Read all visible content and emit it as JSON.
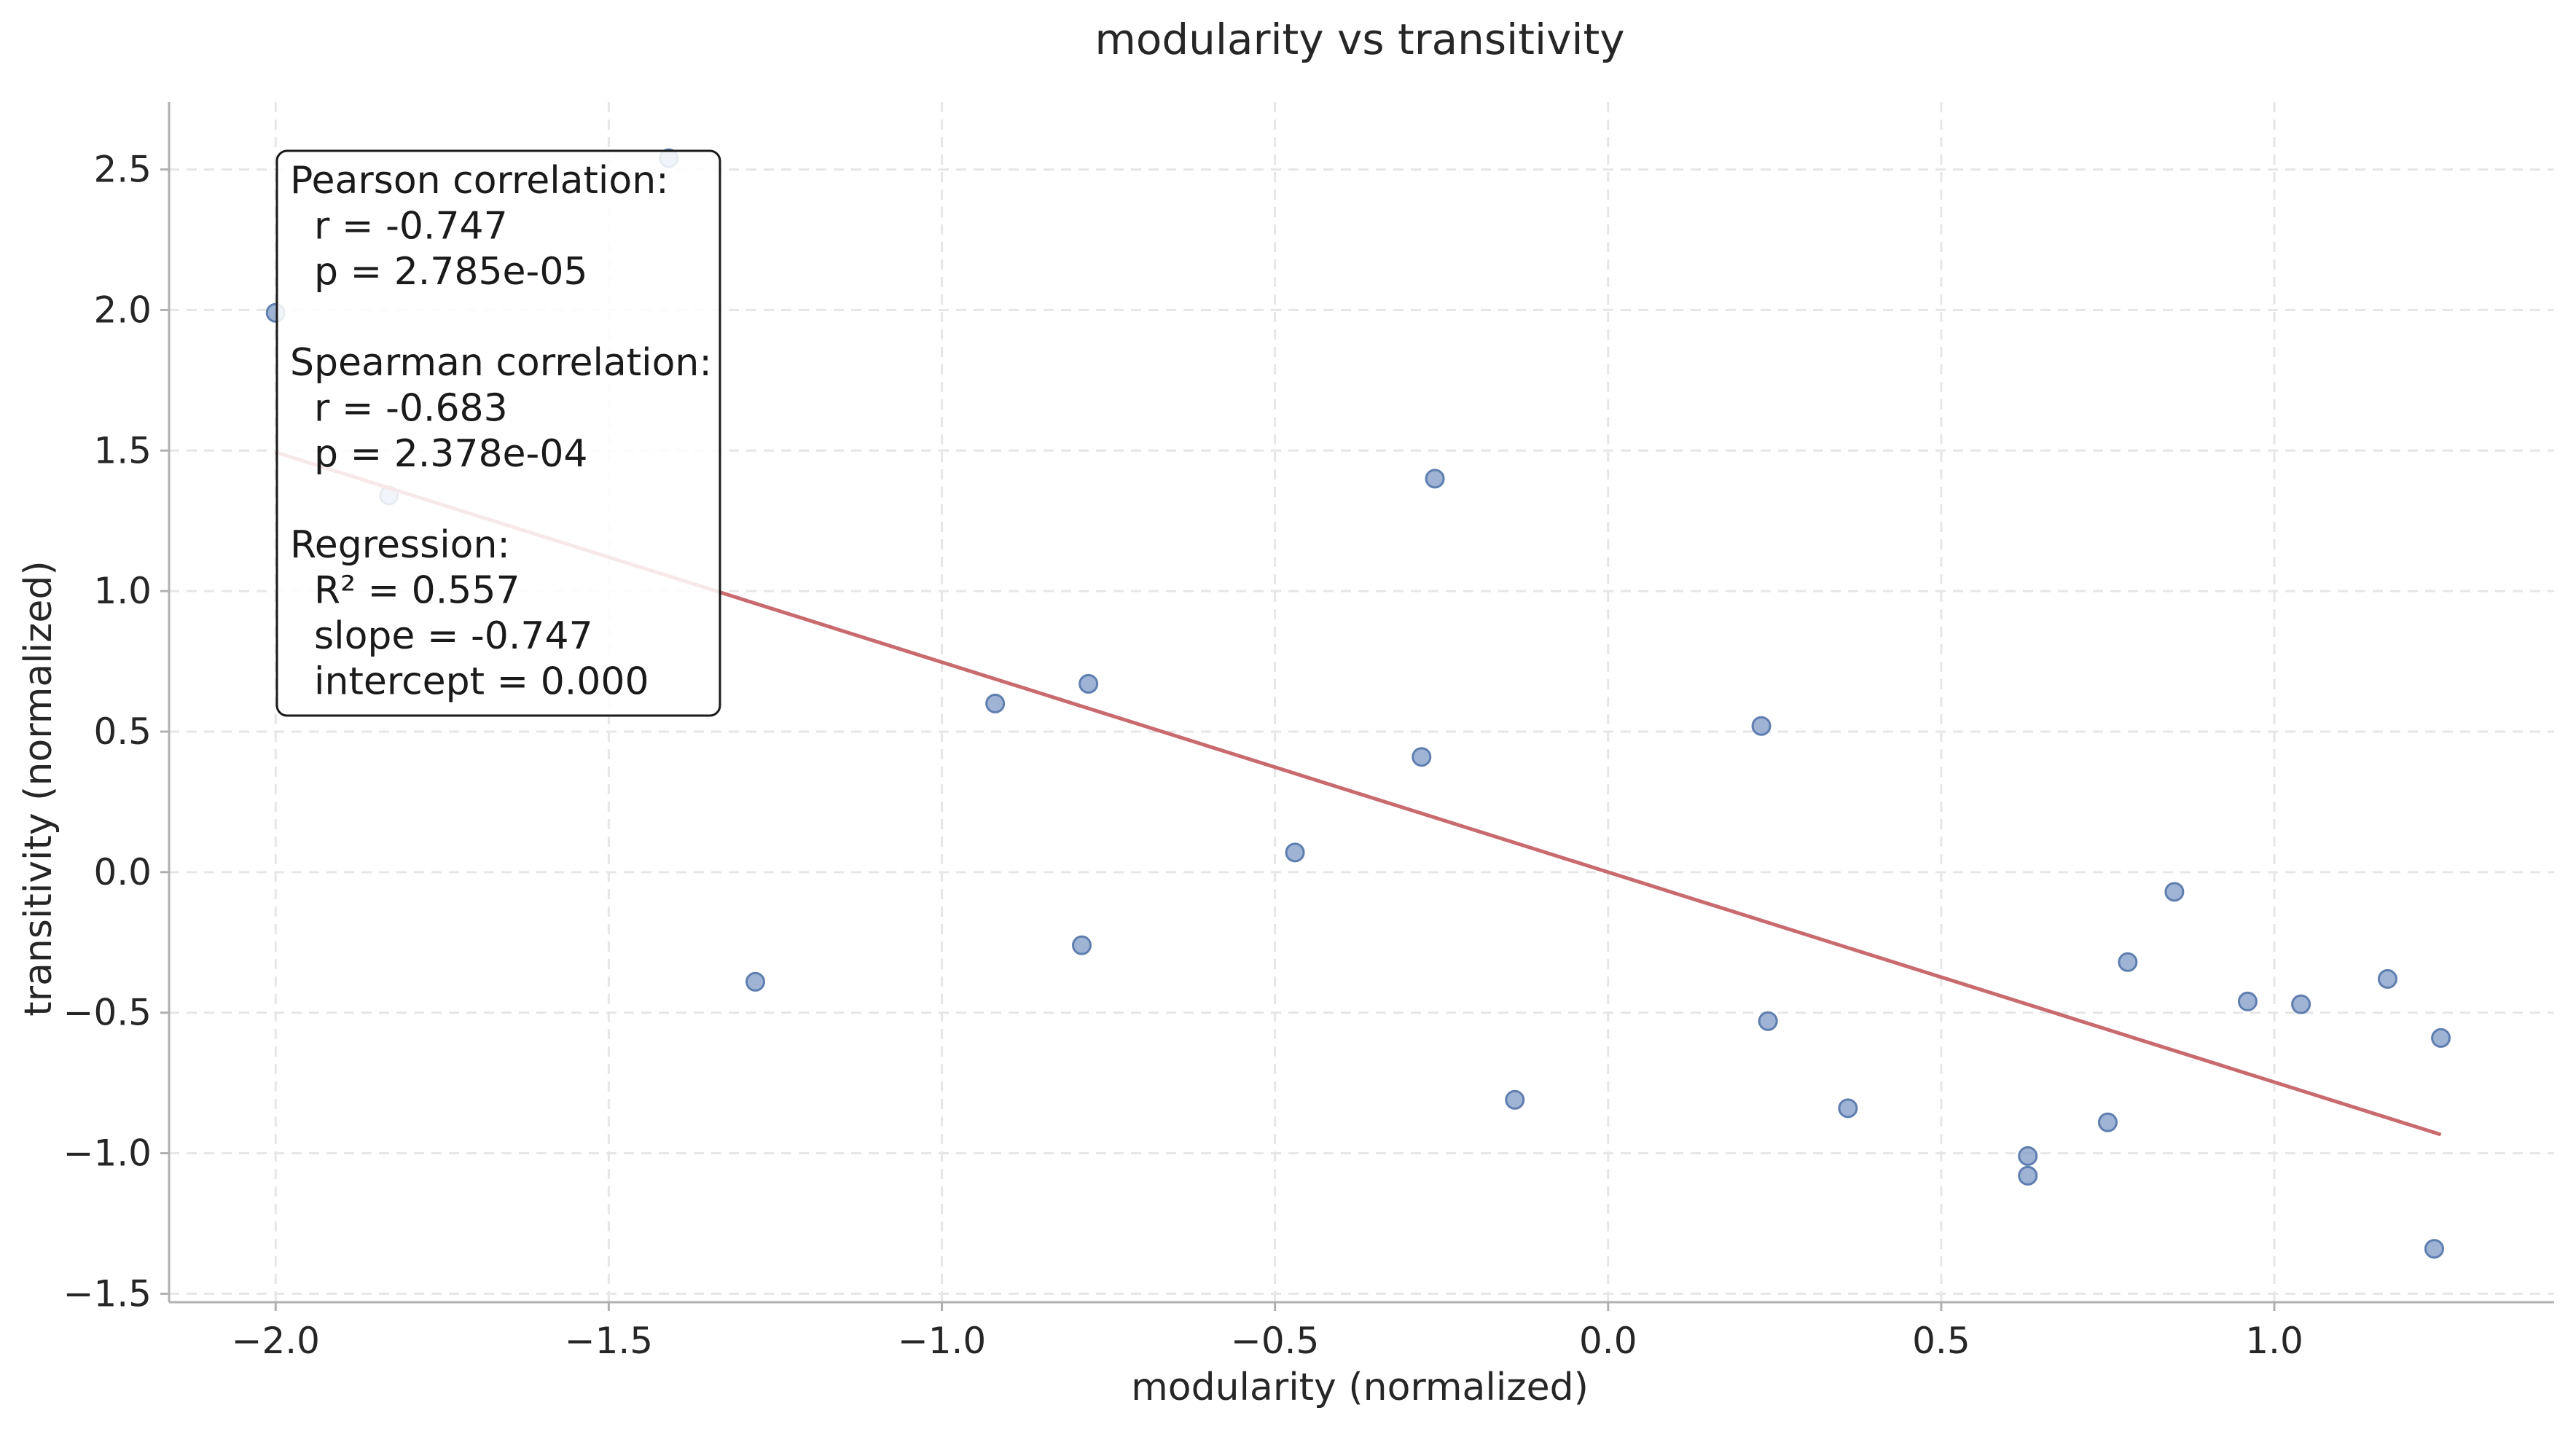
{
  "chart_data": {
    "type": "scatter",
    "title": "modularity vs transitivity",
    "xlabel": "modularity (normalized)",
    "ylabel": "transitivity (normalized)",
    "xlim": [
      -2.16,
      1.42
    ],
    "ylim": [
      -1.53,
      2.74
    ],
    "xticks": [
      -2.0,
      -1.5,
      -1.0,
      -0.5,
      0.0,
      0.5,
      1.0
    ],
    "xtick_labels": [
      "−2.0",
      "−1.5",
      "−1.0",
      "−0.5",
      "0.0",
      "0.5",
      "1.0"
    ],
    "yticks": [
      -1.5,
      -1.0,
      -0.5,
      0.0,
      0.5,
      1.0,
      1.5,
      2.0,
      2.5
    ],
    "ytick_labels": [
      "−1.5",
      "−1.0",
      "−0.5",
      "0.0",
      "0.5",
      "1.0",
      "1.5",
      "2.0",
      "2.5"
    ],
    "grid": true,
    "points": [
      {
        "x": -2.0,
        "y": 1.99
      },
      {
        "x": -1.83,
        "y": 1.34
      },
      {
        "x": -1.41,
        "y": 2.54
      },
      {
        "x": -1.28,
        "y": -0.39
      },
      {
        "x": -0.92,
        "y": 0.6
      },
      {
        "x": -0.78,
        "y": 0.67
      },
      {
        "x": -0.79,
        "y": -0.26
      },
      {
        "x": -0.47,
        "y": 0.07
      },
      {
        "x": -0.26,
        "y": 1.4
      },
      {
        "x": -0.28,
        "y": 0.41
      },
      {
        "x": -0.14,
        "y": -0.81
      },
      {
        "x": 0.23,
        "y": 0.52
      },
      {
        "x": 0.24,
        "y": -0.53
      },
      {
        "x": 0.36,
        "y": -0.84
      },
      {
        "x": 0.63,
        "y": -1.01
      },
      {
        "x": 0.63,
        "y": -1.08
      },
      {
        "x": 0.75,
        "y": -0.89
      },
      {
        "x": 0.78,
        "y": -0.32
      },
      {
        "x": 0.85,
        "y": -0.07
      },
      {
        "x": 0.96,
        "y": -0.46
      },
      {
        "x": 1.04,
        "y": -0.47
      },
      {
        "x": 1.17,
        "y": -0.38
      },
      {
        "x": 1.25,
        "y": -0.59
      },
      {
        "x": 1.24,
        "y": -1.34
      }
    ],
    "regression": {
      "slope": -0.747,
      "intercept": 0.0,
      "x_range": [
        -2.0,
        1.25
      ]
    },
    "colors": {
      "points": "#7f9bc7",
      "point_edge": "#5f7eb0",
      "line": "#c96a6e",
      "grid": "#e6e6e6"
    },
    "stats_box": {
      "lines": [
        "Pearson correlation:",
        "  r = -0.747",
        "  p = 2.785e-05",
        "",
        "Spearman correlation:",
        "  r = -0.683",
        "  p = 2.378e-04",
        "",
        "Regression:",
        "  R² = 0.557",
        "  slope = -0.747",
        "  intercept = 0.000"
      ]
    }
  }
}
